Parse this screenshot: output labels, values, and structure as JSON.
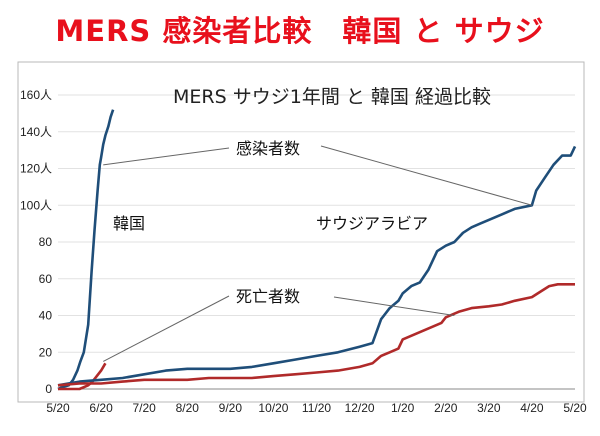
{
  "headline": "MERS 感染者比較　韓国 と サウジ",
  "chart_data": {
    "type": "line",
    "title": "MERS サウジ1年間 と 韓国 経過比較",
    "xlabel": "",
    "ylabel": "",
    "x_ticks": [
      "5/20",
      "6/20",
      "7/20",
      "8/20",
      "9/20",
      "10/20",
      "11/20",
      "12/20",
      "1/20",
      "2/20",
      "3/20",
      "4/20",
      "5/20"
    ],
    "y_ticks": [
      "0",
      "20",
      "40",
      "60",
      "80",
      "100人",
      "120人",
      "140人",
      "160人"
    ],
    "ylim": [
      0,
      160
    ],
    "grid": true,
    "series": [
      {
        "name": "韓国",
        "color": "#1f4e79",
        "x": [
          0,
          0.1,
          0.25,
          0.35,
          0.45,
          0.52,
          0.6,
          0.7,
          0.78,
          0.85,
          0.92,
          0.97,
          1.0,
          1.05,
          1.1,
          1.17,
          1.22,
          1.28
        ],
        "y": [
          0,
          1,
          2,
          5,
          10,
          15,
          20,
          35,
          64,
          87,
          108,
          122,
          126,
          133,
          138,
          143,
          148,
          152
        ]
      },
      {
        "name": "",
        "color": "#b02a2a",
        "x": [
          0,
          0.3,
          0.5,
          0.7,
          0.8,
          0.9,
          1.0,
          1.1
        ],
        "y": [
          0,
          0,
          0,
          2,
          4,
          7,
          10,
          14
        ]
      },
      {
        "name": "サウジアラビア",
        "color": "#1f4e79",
        "x": [
          0,
          0.5,
          1,
          1.5,
          2,
          2.5,
          3,
          3.5,
          4,
          4.5,
          5,
          5.5,
          6,
          6.5,
          7,
          7.3,
          7.5,
          7.7,
          7.9,
          8,
          8.2,
          8.4,
          8.6,
          8.8,
          9,
          9.2,
          9.4,
          9.6,
          9.8,
          10,
          10.3,
          10.6,
          11,
          11.1,
          11.3,
          11.5,
          11.7,
          11.9,
          12
        ],
        "y": [
          2,
          4,
          5,
          6,
          8,
          10,
          11,
          11,
          11,
          12,
          14,
          16,
          18,
          20,
          23,
          25,
          38,
          44,
          48,
          52,
          56,
          58,
          65,
          75,
          78,
          80,
          85,
          88,
          90,
          92,
          95,
          98,
          100,
          108,
          115,
          122,
          127,
          127,
          132
        ]
      },
      {
        "name": "",
        "color": "#b02a2a",
        "x": [
          0,
          0.5,
          1,
          1.5,
          2,
          2.5,
          3,
          3.5,
          4,
          4.5,
          5,
          5.5,
          6,
          6.5,
          7,
          7.3,
          7.5,
          7.7,
          7.9,
          8,
          8.3,
          8.6,
          8.9,
          9,
          9.3,
          9.6,
          10,
          10.3,
          10.6,
          11,
          11.2,
          11.4,
          11.6,
          11.8,
          12
        ],
        "y": [
          2,
          3,
          3,
          4,
          5,
          5,
          5,
          6,
          6,
          6,
          7,
          8,
          9,
          10,
          12,
          14,
          18,
          20,
          22,
          27,
          30,
          33,
          36,
          39,
          42,
          44,
          45,
          46,
          48,
          50,
          53,
          56,
          57,
          57,
          57
        ]
      }
    ],
    "annotations": {
      "infected": "感染者数",
      "deaths": "死亡者数",
      "korea": "韓国",
      "saudi": "サウジアラビア"
    }
  }
}
